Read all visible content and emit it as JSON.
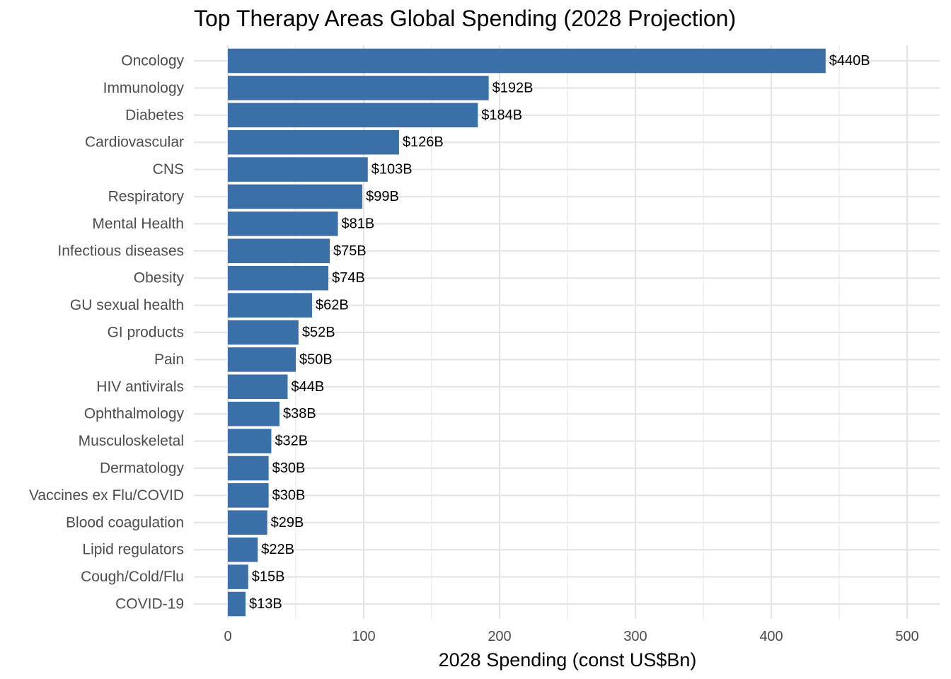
{
  "chart_data": {
    "type": "bar",
    "orientation": "horizontal",
    "title": "Top Therapy Areas Global Spending (2028 Projection)",
    "xlabel": "2028 Spending (const US$Bn)",
    "ylabel": "",
    "xlim": [
      0,
      500
    ],
    "x_ticks": [
      0,
      100,
      200,
      300,
      400,
      500
    ],
    "grid": true,
    "bar_color": "#3a6fa8",
    "categories": [
      "Oncology",
      "Immunology",
      "Diabetes",
      "Cardiovascular",
      "CNS",
      "Respiratory",
      "Mental Health",
      "Infectious diseases",
      "Obesity",
      "GU sexual health",
      "GI products",
      "Pain",
      "HIV antivirals",
      "Ophthalmology",
      "Musculoskeletal",
      "Dermatology",
      "Vaccines ex Flu/COVID",
      "Blood coagulation",
      "Lipid regulators",
      "Cough/Cold/Flu",
      "COVID-19"
    ],
    "values": [
      440,
      192,
      184,
      126,
      103,
      99,
      81,
      75,
      74,
      62,
      52,
      50,
      44,
      38,
      32,
      30,
      30,
      29,
      22,
      15,
      13
    ],
    "data_labels": [
      "$440B",
      "$192B",
      "$184B",
      "$126B",
      "$103B",
      "$99B",
      "$81B",
      "$75B",
      "$74B",
      "$62B",
      "$52B",
      "$50B",
      "$44B",
      "$38B",
      "$32B",
      "$30B",
      "$30B",
      "$29B",
      "$22B",
      "$15B",
      "$13B"
    ]
  }
}
